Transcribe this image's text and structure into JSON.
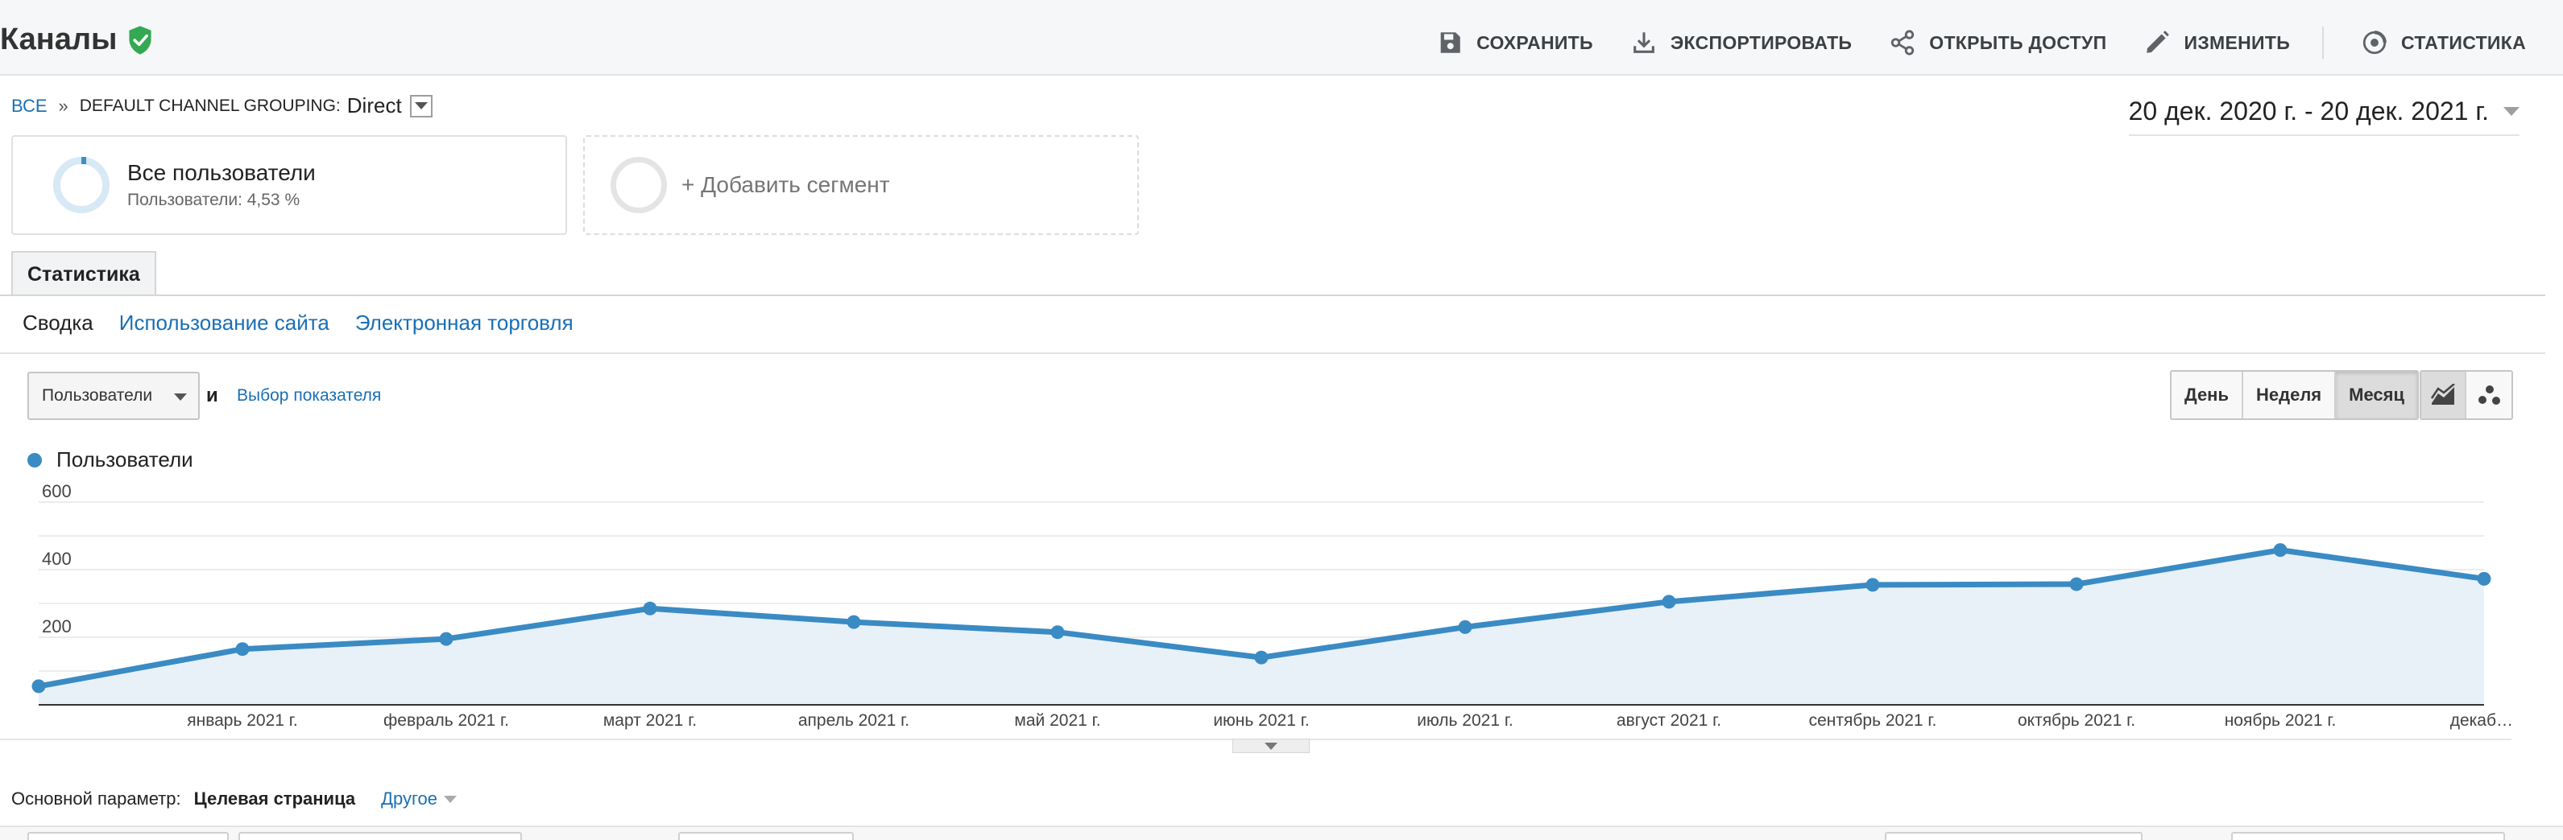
{
  "header": {
    "title": "Каналы",
    "verified_icon": "shield-check-icon",
    "actions": [
      {
        "label": "СОХРАНИТЬ",
        "icon": "save-icon"
      },
      {
        "label": "ЭКСПОРТИРОВАТЬ",
        "icon": "download-icon"
      },
      {
        "label": "ОТКРЫТЬ ДОСТУП",
        "icon": "share-icon"
      },
      {
        "label": "ИЗМЕНИТЬ",
        "icon": "pencil-icon"
      },
      {
        "label": "СТАТИСТИКА",
        "icon": "insights-icon"
      }
    ]
  },
  "breadcrumb": {
    "root": "ВСЕ",
    "separator": "»",
    "group": "DEFAULT CHANNEL GROUPING:",
    "value": "Direct"
  },
  "date_range": "20 дек. 2020 г. - 20 дек. 2021 г.",
  "segments": {
    "active": {
      "title": "Все пользователи",
      "subtitle": "Пользователи: 4,53 %"
    },
    "add_label": "+ Добавить сегмент"
  },
  "tabs": {
    "main": "Статистика",
    "sub": [
      "Сводка",
      "Использование сайта",
      "Электронная торговля"
    ]
  },
  "controls": {
    "metric": "Пользователи",
    "and": "и",
    "pick_metric": "Выбор показателя",
    "periods": [
      "День",
      "Неделя",
      "Месяц"
    ],
    "active_period": "Месяц",
    "chart_types": [
      "line-chart-icon",
      "motion-chart-icon"
    ]
  },
  "legend": {
    "label": "Пользователи",
    "color": "#3a8bc4"
  },
  "chart_data": {
    "type": "area",
    "series": [
      {
        "name": "Пользователи",
        "color": "#3a8bc4",
        "values": [
          55,
          165,
          195,
          285,
          245,
          215,
          140,
          230,
          305,
          355,
          357,
          458,
          373
        ]
      }
    ],
    "x_labels": [
      "январь 2021 г.",
      "февраль 2021 г.",
      "март 2021 г.",
      "апрель 2021 г.",
      "май 2021 г.",
      "июнь 2021 г.",
      "июль 2021 г.",
      "август 2021 г.",
      "сентябрь 2021 г.",
      "октябрь 2021 г.",
      "ноябрь 2021 г.",
      "декаб…"
    ],
    "y_ticks": [
      "200",
      "400",
      "600"
    ],
    "ylim": [
      0,
      600
    ],
    "grid": true
  },
  "dimension": {
    "label": "Основной параметр:",
    "value": "Целевая страница",
    "other": "Другое"
  },
  "colors": {
    "accent": "#1a6fb4",
    "series_line": "#3a8bc4",
    "area_fill": "#e8f0f8",
    "verified": "#34a853"
  }
}
